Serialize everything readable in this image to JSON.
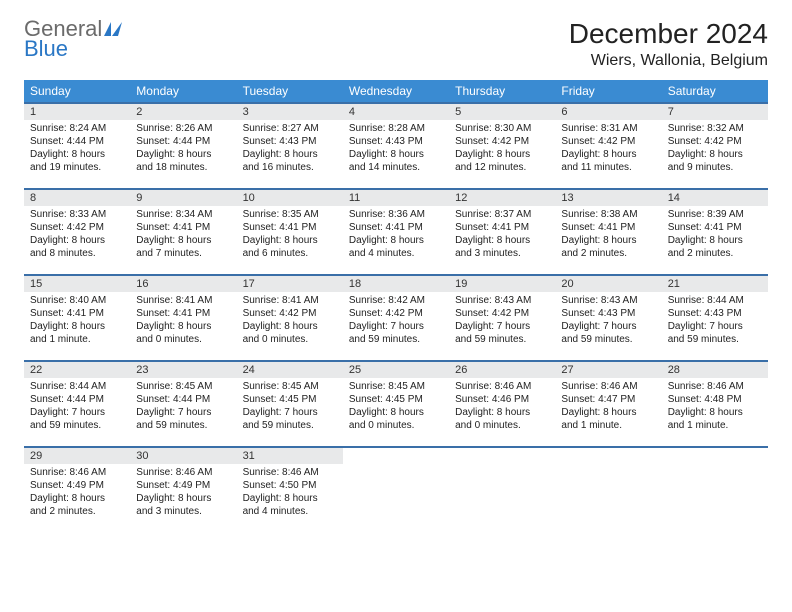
{
  "brand": {
    "general": "General",
    "blue": "Blue"
  },
  "title": "December 2024",
  "location": "Wiers, Wallonia, Belgium",
  "colors": {
    "header_bg": "#3a8bd2",
    "header_text": "#ffffff",
    "rule": "#3a6fa8",
    "daynum_bg": "#e8e9ea",
    "brand_gray": "#6b6b6b",
    "brand_blue": "#2a77c5"
  },
  "weekdays": [
    "Sunday",
    "Monday",
    "Tuesday",
    "Wednesday",
    "Thursday",
    "Friday",
    "Saturday"
  ],
  "weeks": [
    [
      {
        "n": "1",
        "sunrise": "8:24 AM",
        "sunset": "4:44 PM",
        "daylight": "8 hours and 19 minutes."
      },
      {
        "n": "2",
        "sunrise": "8:26 AM",
        "sunset": "4:44 PM",
        "daylight": "8 hours and 18 minutes."
      },
      {
        "n": "3",
        "sunrise": "8:27 AM",
        "sunset": "4:43 PM",
        "daylight": "8 hours and 16 minutes."
      },
      {
        "n": "4",
        "sunrise": "8:28 AM",
        "sunset": "4:43 PM",
        "daylight": "8 hours and 14 minutes."
      },
      {
        "n": "5",
        "sunrise": "8:30 AM",
        "sunset": "4:42 PM",
        "daylight": "8 hours and 12 minutes."
      },
      {
        "n": "6",
        "sunrise": "8:31 AM",
        "sunset": "4:42 PM",
        "daylight": "8 hours and 11 minutes."
      },
      {
        "n": "7",
        "sunrise": "8:32 AM",
        "sunset": "4:42 PM",
        "daylight": "8 hours and 9 minutes."
      }
    ],
    [
      {
        "n": "8",
        "sunrise": "8:33 AM",
        "sunset": "4:42 PM",
        "daylight": "8 hours and 8 minutes."
      },
      {
        "n": "9",
        "sunrise": "8:34 AM",
        "sunset": "4:41 PM",
        "daylight": "8 hours and 7 minutes."
      },
      {
        "n": "10",
        "sunrise": "8:35 AM",
        "sunset": "4:41 PM",
        "daylight": "8 hours and 6 minutes."
      },
      {
        "n": "11",
        "sunrise": "8:36 AM",
        "sunset": "4:41 PM",
        "daylight": "8 hours and 4 minutes."
      },
      {
        "n": "12",
        "sunrise": "8:37 AM",
        "sunset": "4:41 PM",
        "daylight": "8 hours and 3 minutes."
      },
      {
        "n": "13",
        "sunrise": "8:38 AM",
        "sunset": "4:41 PM",
        "daylight": "8 hours and 2 minutes."
      },
      {
        "n": "14",
        "sunrise": "8:39 AM",
        "sunset": "4:41 PM",
        "daylight": "8 hours and 2 minutes."
      }
    ],
    [
      {
        "n": "15",
        "sunrise": "8:40 AM",
        "sunset": "4:41 PM",
        "daylight": "8 hours and 1 minute."
      },
      {
        "n": "16",
        "sunrise": "8:41 AM",
        "sunset": "4:41 PM",
        "daylight": "8 hours and 0 minutes."
      },
      {
        "n": "17",
        "sunrise": "8:41 AM",
        "sunset": "4:42 PM",
        "daylight": "8 hours and 0 minutes."
      },
      {
        "n": "18",
        "sunrise": "8:42 AM",
        "sunset": "4:42 PM",
        "daylight": "7 hours and 59 minutes."
      },
      {
        "n": "19",
        "sunrise": "8:43 AM",
        "sunset": "4:42 PM",
        "daylight": "7 hours and 59 minutes."
      },
      {
        "n": "20",
        "sunrise": "8:43 AM",
        "sunset": "4:43 PM",
        "daylight": "7 hours and 59 minutes."
      },
      {
        "n": "21",
        "sunrise": "8:44 AM",
        "sunset": "4:43 PM",
        "daylight": "7 hours and 59 minutes."
      }
    ],
    [
      {
        "n": "22",
        "sunrise": "8:44 AM",
        "sunset": "4:44 PM",
        "daylight": "7 hours and 59 minutes."
      },
      {
        "n": "23",
        "sunrise": "8:45 AM",
        "sunset": "4:44 PM",
        "daylight": "7 hours and 59 minutes."
      },
      {
        "n": "24",
        "sunrise": "8:45 AM",
        "sunset": "4:45 PM",
        "daylight": "7 hours and 59 minutes."
      },
      {
        "n": "25",
        "sunrise": "8:45 AM",
        "sunset": "4:45 PM",
        "daylight": "8 hours and 0 minutes."
      },
      {
        "n": "26",
        "sunrise": "8:46 AM",
        "sunset": "4:46 PM",
        "daylight": "8 hours and 0 minutes."
      },
      {
        "n": "27",
        "sunrise": "8:46 AM",
        "sunset": "4:47 PM",
        "daylight": "8 hours and 1 minute."
      },
      {
        "n": "28",
        "sunrise": "8:46 AM",
        "sunset": "4:48 PM",
        "daylight": "8 hours and 1 minute."
      }
    ],
    [
      {
        "n": "29",
        "sunrise": "8:46 AM",
        "sunset": "4:49 PM",
        "daylight": "8 hours and 2 minutes."
      },
      {
        "n": "30",
        "sunrise": "8:46 AM",
        "sunset": "4:49 PM",
        "daylight": "8 hours and 3 minutes."
      },
      {
        "n": "31",
        "sunrise": "8:46 AM",
        "sunset": "4:50 PM",
        "daylight": "8 hours and 4 minutes."
      },
      null,
      null,
      null,
      null
    ]
  ],
  "labels": {
    "sunrise": "Sunrise:",
    "sunset": "Sunset:",
    "daylight": "Daylight:"
  }
}
